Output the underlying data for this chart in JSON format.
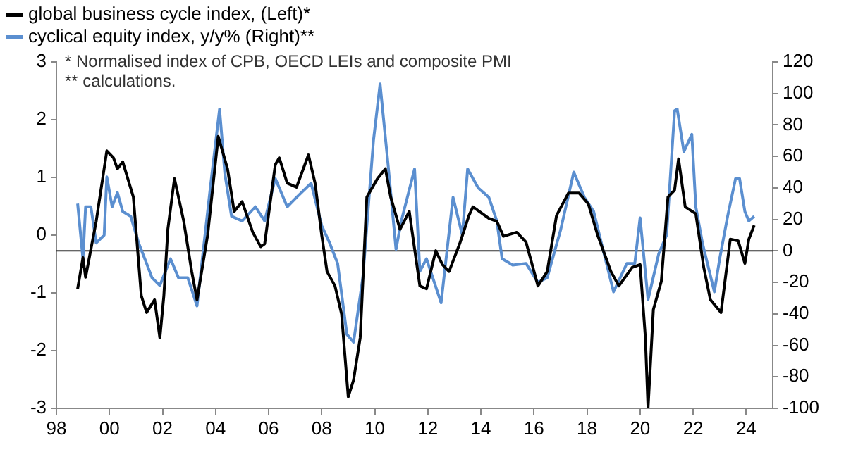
{
  "chart_data": {
    "type": "line",
    "xlim": [
      1998,
      2025
    ],
    "xticks": [
      {
        "value": 1998,
        "label": "98"
      },
      {
        "value": 2000,
        "label": "00"
      },
      {
        "value": 2002,
        "label": "02"
      },
      {
        "value": 2004,
        "label": "04"
      },
      {
        "value": 2006,
        "label": "06"
      },
      {
        "value": 2008,
        "label": "08"
      },
      {
        "value": 2010,
        "label": "10"
      },
      {
        "value": 2012,
        "label": "12"
      },
      {
        "value": 2014,
        "label": "14"
      },
      {
        "value": 2016,
        "label": "16"
      },
      {
        "value": 2018,
        "label": "18"
      },
      {
        "value": 2020,
        "label": "20"
      },
      {
        "value": 2022,
        "label": "22"
      },
      {
        "value": 2024,
        "label": "24"
      }
    ],
    "ylim": [
      -3,
      3
    ],
    "yticks": [
      -3,
      -2,
      -1,
      0,
      1,
      2,
      3
    ],
    "y2lim": [
      -100,
      120
    ],
    "y2ticks": [
      -100,
      -80,
      -60,
      -40,
      -20,
      0,
      20,
      40,
      60,
      80,
      100,
      120
    ],
    "legend": "top left",
    "grid": false,
    "marker": "none",
    "line_style": "solid",
    "ref_lines": [
      {
        "axis": "y2",
        "value": 0,
        "color": "#333333"
      }
    ],
    "annotations": [
      "* Normalised index of CPB, OECD LEIs and composite PMI",
      "** calculations."
    ],
    "series": [
      {
        "name": "global business cycle index, (Left)*",
        "color": "#000000",
        "axis": "y",
        "x": [
          1998.8,
          1999.0,
          1999.1,
          1999.5,
          1999.9,
          2000.15,
          2000.3,
          2000.5,
          2000.9,
          2001.2,
          2001.4,
          2001.7,
          2001.9,
          2002.05,
          2002.2,
          2002.45,
          2002.8,
          2003.1,
          2003.3,
          2003.7,
          2004.1,
          2004.45,
          2004.7,
          2005.0,
          2005.4,
          2005.7,
          2005.85,
          2006.25,
          2006.4,
          2006.7,
          2007.05,
          2007.5,
          2007.75,
          2008.0,
          2008.2,
          2008.5,
          2008.75,
          2009.0,
          2009.2,
          2009.45,
          2009.7,
          2010.1,
          2010.4,
          2010.6,
          2010.95,
          2011.3,
          2011.7,
          2011.95,
          2012.3,
          2012.55,
          2012.8,
          2013.2,
          2013.55,
          2013.7,
          2014.3,
          2014.6,
          2014.85,
          2015.35,
          2015.7,
          2016.15,
          2016.5,
          2016.85,
          2017.3,
          2017.7,
          2018.05,
          2018.4,
          2018.9,
          2019.2,
          2019.7,
          2020.0,
          2020.2,
          2020.3,
          2020.5,
          2020.8,
          2021.05,
          2021.3,
          2021.45,
          2021.7,
          2022.1,
          2022.4,
          2022.65,
          2023.05,
          2023.4,
          2023.7,
          2023.95,
          2024.1,
          2024.3
        ],
        "values": [
          -0.93,
          -0.39,
          -0.73,
          0.24,
          1.46,
          1.34,
          1.15,
          1.27,
          0.66,
          -1.05,
          -1.34,
          -1.12,
          -1.78,
          -1.05,
          0.1,
          0.98,
          0.24,
          -0.63,
          -1.12,
          0,
          1.71,
          1.15,
          0.41,
          0.58,
          0.05,
          -0.2,
          -0.15,
          1.22,
          1.34,
          0.9,
          0.83,
          1.39,
          0.9,
          0,
          -0.63,
          -0.88,
          -1.37,
          -2.8,
          -2.51,
          -1.78,
          0.66,
          0.98,
          1.15,
          0.66,
          0.1,
          0.41,
          -0.88,
          -0.93,
          -0.27,
          -0.51,
          -0.63,
          -0.15,
          0.34,
          0.49,
          0.29,
          0.24,
          -0.02,
          0.05,
          -0.12,
          -0.88,
          -0.63,
          0.34,
          0.73,
          0.73,
          0.54,
          0,
          -0.63,
          -0.88,
          -0.56,
          -0.51,
          -1.78,
          -3.0,
          -1.29,
          -0.8,
          0.66,
          0.78,
          1.32,
          0.49,
          0.37,
          -0.56,
          -1.12,
          -1.34,
          -0.07,
          -0.1,
          -0.49,
          -0.07,
          0.17
        ]
      },
      {
        "name": "cyclical equity index, y/y% (Right)**",
        "color": "#5b8fd0",
        "axis": "y2",
        "x": [
          1998.8,
          1999.0,
          1999.1,
          1999.3,
          1999.5,
          1999.8,
          1999.9,
          2000.1,
          2000.3,
          2000.5,
          2000.8,
          2001.1,
          2001.4,
          2001.6,
          2001.9,
          2002.3,
          2002.6,
          2002.95,
          2003.3,
          2003.8,
          2004.15,
          2004.35,
          2004.6,
          2005.0,
          2005.5,
          2005.85,
          2006.25,
          2006.7,
          2007.05,
          2007.6,
          2008.0,
          2008.3,
          2008.6,
          2008.95,
          2009.2,
          2009.55,
          2009.95,
          2010.2,
          2010.5,
          2010.8,
          2011.0,
          2011.5,
          2011.7,
          2011.95,
          2012.5,
          2012.95,
          2013.3,
          2013.5,
          2013.9,
          2014.3,
          2014.6,
          2014.8,
          2015.2,
          2015.7,
          2016.15,
          2016.5,
          2017.0,
          2017.5,
          2017.9,
          2018.25,
          2018.6,
          2019.0,
          2019.5,
          2019.8,
          2020.0,
          2020.3,
          2020.7,
          2021.0,
          2021.3,
          2021.4,
          2021.65,
          2021.95,
          2022.1,
          2022.35,
          2022.8,
          2023.0,
          2023.3,
          2023.6,
          2023.75,
          2023.95,
          2024.1,
          2024.3
        ],
        "values": [
          30,
          -5,
          28,
          28,
          5,
          10,
          47,
          28,
          37,
          25,
          22,
          5,
          -8,
          -17,
          -22,
          -5,
          -17,
          -17,
          -35,
          40,
          90,
          49,
          22,
          19,
          28,
          19,
          46,
          28,
          34,
          43,
          16,
          5,
          -8,
          -53,
          -58,
          -17,
          70,
          106,
          55,
          1,
          19,
          52,
          -13,
          -5,
          -33,
          34,
          10,
          52,
          40,
          34,
          19,
          -5,
          -9,
          -8,
          -20,
          -17,
          13,
          50,
          34,
          25,
          1,
          -26,
          -8,
          -8,
          21,
          -31,
          -2,
          10,
          89,
          90,
          63,
          74,
          28,
          5,
          -26,
          -5,
          22,
          46,
          46,
          25,
          19,
          22
        ]
      }
    ]
  }
}
